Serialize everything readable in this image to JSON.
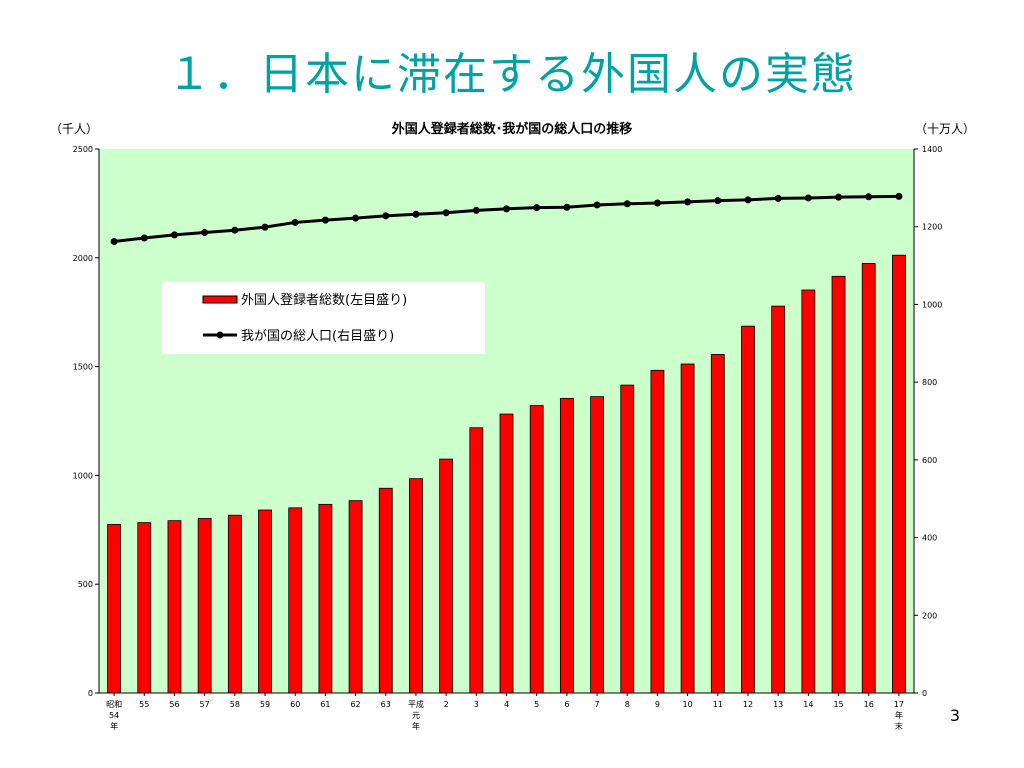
{
  "slide": {
    "title": "１．日本に滞在する外国人の実態",
    "page_number": "3"
  },
  "chart_data": {
    "type": "bar",
    "title": "外国人登録者総数･我が国の総人口の推移",
    "left_axis_unit": "（千人）",
    "right_axis_unit": "（十万人）",
    "left_ylim": [
      0,
      2500
    ],
    "left_ticks": [
      "0",
      "500",
      "1000",
      "1500",
      "2000",
      "2500"
    ],
    "right_ylim": [
      0,
      1400
    ],
    "right_ticks": [
      "0",
      "200",
      "400",
      "600",
      "800",
      "1000",
      "1200",
      "1400"
    ],
    "grid": false,
    "legend_position": "upper-left",
    "plot_background": "#ccffcc",
    "categories": [
      [
        "昭和",
        "54",
        "年"
      ],
      [
        "55"
      ],
      [
        "56"
      ],
      [
        "57"
      ],
      [
        "58"
      ],
      [
        "59"
      ],
      [
        "60"
      ],
      [
        "61"
      ],
      [
        "62"
      ],
      [
        "63"
      ],
      [
        "平成",
        "元",
        "年"
      ],
      [
        "2"
      ],
      [
        "3"
      ],
      [
        "4"
      ],
      [
        "5"
      ],
      [
        "6"
      ],
      [
        "7"
      ],
      [
        "8"
      ],
      [
        "9"
      ],
      [
        "10"
      ],
      [
        "11"
      ],
      [
        "12"
      ],
      [
        "13"
      ],
      [
        "14"
      ],
      [
        "15"
      ],
      [
        "16"
      ],
      [
        "17",
        "年",
        "末"
      ]
    ],
    "series": [
      {
        "name": "外国人登録者総数(左目盛り)",
        "type": "bar",
        "axis": "left",
        "color": "#ff0000",
        "values": [
          775,
          783,
          792,
          802,
          817,
          841,
          851,
          867,
          884,
          941,
          985,
          1075,
          1219,
          1282,
          1321,
          1354,
          1362,
          1415,
          1483,
          1512,
          1556,
          1686,
          1778,
          1852,
          1915,
          1974,
          2012
        ]
      },
      {
        "name": "我が国の総人口(右目盛り)",
        "type": "line",
        "axis": "right",
        "color": "#000000",
        "values": [
          1162,
          1171,
          1179,
          1185,
          1191,
          1199,
          1211,
          1217,
          1222,
          1228,
          1232,
          1236,
          1242,
          1246,
          1249,
          1250,
          1256,
          1259,
          1261,
          1264,
          1267,
          1269,
          1273,
          1274,
          1276,
          1277,
          1278
        ]
      }
    ]
  }
}
